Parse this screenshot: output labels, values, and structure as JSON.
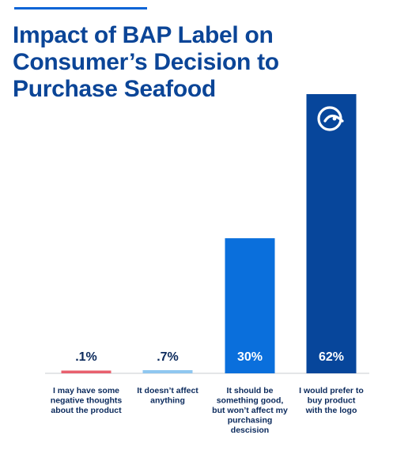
{
  "title_lines": [
    "Impact of BAP Label on",
    "Consumer’s Decision to",
    "Purchase Seafood"
  ],
  "icon": "eye-logo-icon",
  "colors": {
    "title": "#0b4597",
    "rule": "#0a64d6",
    "axis": "#c9ccd1",
    "label_dark": "#0b2a5c",
    "value_on_bar": "#ffffff"
  },
  "chart_data": {
    "type": "bar",
    "title": "Impact of BAP Label on Consumer’s Decision to Purchase Seafood",
    "unit": "%",
    "ylim": [
      0,
      62
    ],
    "grid": false,
    "legend": "none",
    "categories": [
      [
        "I may have some",
        "negative thoughts",
        "about the product"
      ],
      [
        "It doesn’t affect",
        "anything"
      ],
      [
        "It should be",
        "something good,",
        "but won’t affect my",
        "purchasing",
        "descision"
      ],
      [
        "I would prefer to",
        "buy product",
        "with the logo"
      ]
    ],
    "values": [
      0.1,
      0.7,
      30,
      62
    ],
    "value_labels": [
      ".1%",
      ".7%",
      "30%",
      "62%"
    ],
    "bar_colors": [
      "#e8606e",
      "#8fc7f0",
      "#0a6fdc",
      "#07469b"
    ]
  }
}
